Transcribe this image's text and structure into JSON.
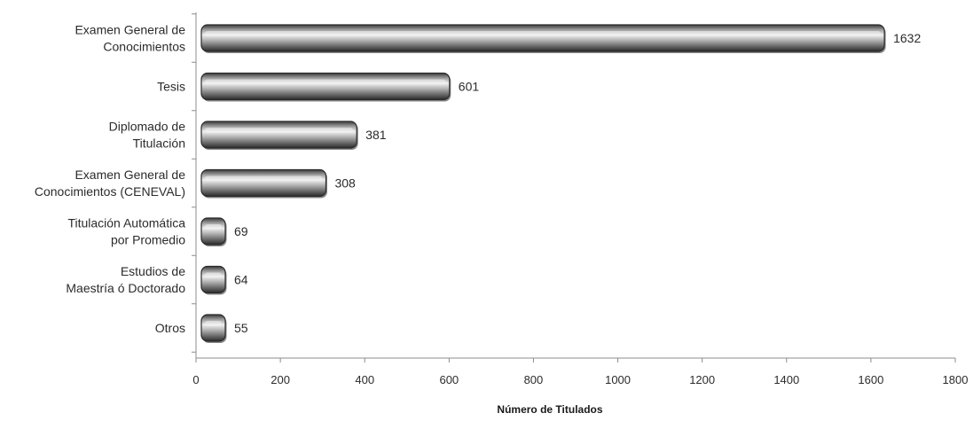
{
  "chart_data": {
    "type": "bar",
    "orientation": "horizontal",
    "categories": [
      [
        "Examen General de",
        "Conocimientos"
      ],
      [
        "Tesis"
      ],
      [
        "Diplomado de",
        "Titulación"
      ],
      [
        "Examen General de",
        "Conocimientos  (CENEVAL)"
      ],
      [
        "Titulación Automática",
        "por Promedio"
      ],
      [
        "Estudios de",
        "Maestría ó Doctorado"
      ],
      [
        "Otros"
      ]
    ],
    "values": [
      1632,
      601,
      381,
      308,
      69,
      64,
      55
    ],
    "data_labels": [
      "1632",
      "601",
      "381",
      "308",
      "69",
      "64",
      "55"
    ],
    "xlabel": "Número de Titulados",
    "ylabel": "",
    "xlim": [
      0,
      1800
    ],
    "xticks": [
      0,
      200,
      400,
      600,
      800,
      1000,
      1200,
      1400,
      1600,
      1800
    ],
    "grid": false,
    "legend": "none",
    "bar_color": "#6e6e6e",
    "bar_highlight": "#f2f2f2",
    "bar_shadow": "#2a2a2a"
  }
}
